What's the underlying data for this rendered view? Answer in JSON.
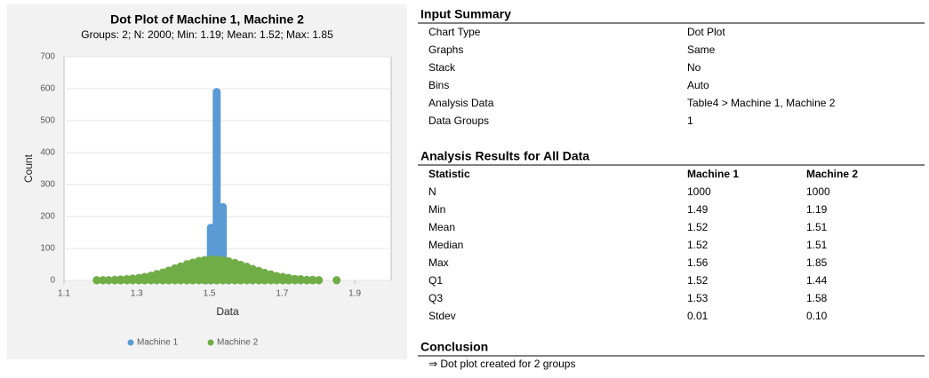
{
  "chart_data": {
    "type": "dot",
    "title": "Dot Plot of Machine 1, Machine 2",
    "subtitle": "Groups: 2; N: 2000; Min: 1.19; Mean: 1.52; Max: 1.85",
    "x_label": "Data",
    "y_label": "Count",
    "xlim": [
      1.1,
      2.0
    ],
    "xticks": [
      1.1,
      1.3,
      1.5,
      1.7,
      1.9
    ],
    "ylim": [
      0,
      700
    ],
    "yticks": [
      0,
      100,
      200,
      300,
      400,
      500,
      600,
      700
    ],
    "grid": true,
    "legend": "bottom",
    "series": [
      {
        "name": "Machine 1",
        "color": "#5b9bd5",
        "x": [
          1.49,
          1.504,
          1.52,
          1.537,
          1.553
        ],
        "values": [
          5,
          165,
          590,
          230,
          10
        ]
      },
      {
        "name": "Machine 2",
        "color": "#70ad47",
        "x": [
          1.19,
          1.207,
          1.223,
          1.24,
          1.256,
          1.273,
          1.289,
          1.306,
          1.322,
          1.339,
          1.355,
          1.372,
          1.388,
          1.405,
          1.421,
          1.438,
          1.454,
          1.471,
          1.487,
          1.504,
          1.52,
          1.537,
          1.553,
          1.57,
          1.586,
          1.603,
          1.619,
          1.636,
          1.652,
          1.669,
          1.685,
          1.702,
          1.718,
          1.735,
          1.751,
          1.768,
          1.784,
          1.801,
          1.85
        ],
        "values": [
          1,
          1,
          1,
          2,
          3,
          4,
          6,
          8,
          11,
          15,
          20,
          25,
          31,
          38,
          44,
          51,
          56,
          61,
          64,
          66,
          65,
          64,
          60,
          55,
          49,
          43,
          36,
          30,
          24,
          19,
          14,
          11,
          8,
          5,
          4,
          2,
          2,
          1,
          1
        ]
      }
    ]
  },
  "input_summary": {
    "title": "Input Summary",
    "rows": [
      [
        "Chart Type",
        "Dot Plot"
      ],
      [
        "Graphs",
        "Same"
      ],
      [
        "Stack",
        "No"
      ],
      [
        "Bins",
        "Auto"
      ],
      [
        "Analysis Data",
        "Table4 > Machine 1, Machine 2"
      ],
      [
        "Data Groups",
        "1"
      ]
    ]
  },
  "analysis_results": {
    "title": "Analysis Results for All Data",
    "header": [
      "Statistic",
      "Machine 1",
      "Machine 2"
    ],
    "rows": [
      [
        "N",
        "1000",
        "1000"
      ],
      [
        "Min",
        "1.49",
        "1.19"
      ],
      [
        "Mean",
        "1.52",
        "1.51"
      ],
      [
        "Median",
        "1.52",
        "1.51"
      ],
      [
        "Max",
        "1.56",
        "1.85"
      ],
      [
        "Q1",
        "1.52",
        "1.44"
      ],
      [
        "Q3",
        "1.53",
        "1.58"
      ],
      [
        "Stdev",
        "0.01",
        "0.10"
      ]
    ]
  },
  "conclusion": {
    "title": "Conclusion",
    "text": "⇒ Dot plot created for 2 groups"
  }
}
